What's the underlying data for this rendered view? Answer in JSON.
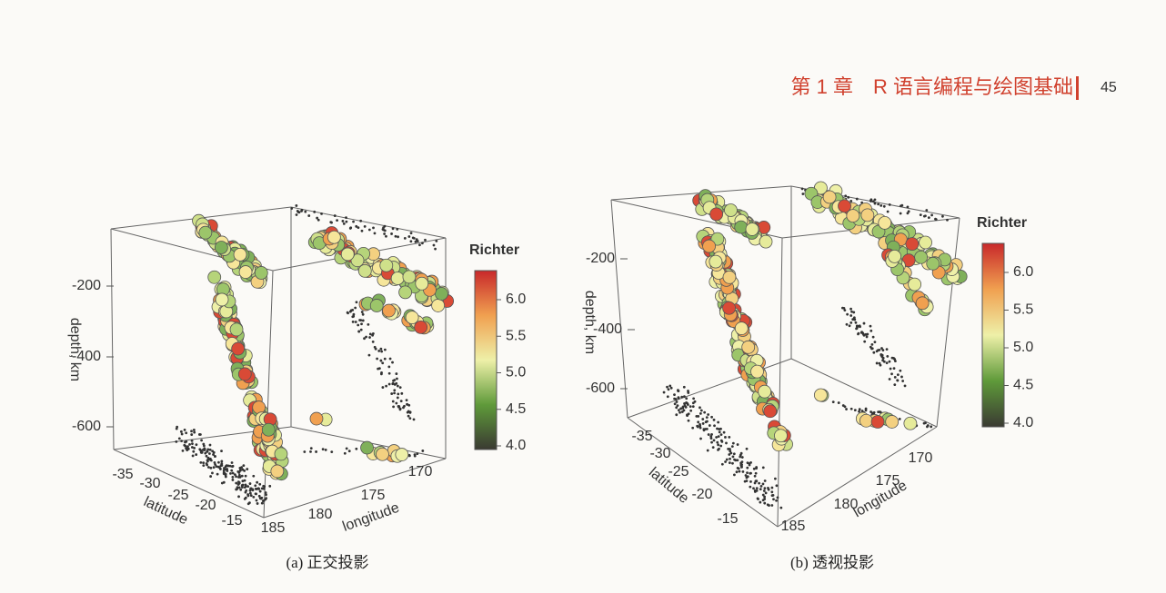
{
  "header": {
    "chapter": "第 1 章　R 语言编程与绘图基础",
    "page_number": "45"
  },
  "figures": [
    {
      "caption": "(a)  正交投影",
      "z_label": "depth, km",
      "x_label": "latitude",
      "y_label": "longitude",
      "z_ticks": [
        "-200",
        "-400",
        "-600"
      ],
      "x_ticks": [
        "-35",
        "-30",
        "-25",
        "-20",
        "-15"
      ],
      "y_ticks": [
        "185",
        "180",
        "175",
        "170"
      ],
      "legend_title": "Richter",
      "legend_ticks": [
        "4.0",
        "4.5",
        "5.0",
        "5.5",
        "6.0"
      ]
    },
    {
      "caption": "(b)  透视投影",
      "z_label": "depth, km",
      "x_label": "latitude",
      "y_label": "longitude",
      "z_ticks": [
        "-200",
        "-400",
        "-600"
      ],
      "x_ticks": [
        "-35",
        "-30",
        "-25",
        "-20",
        "-15"
      ],
      "y_ticks": [
        "185",
        "180",
        "175",
        "170"
      ],
      "legend_title": "Richter",
      "legend_ticks": [
        "4.0",
        "4.5",
        "5.0",
        "5.5",
        "6.0"
      ]
    }
  ]
}
